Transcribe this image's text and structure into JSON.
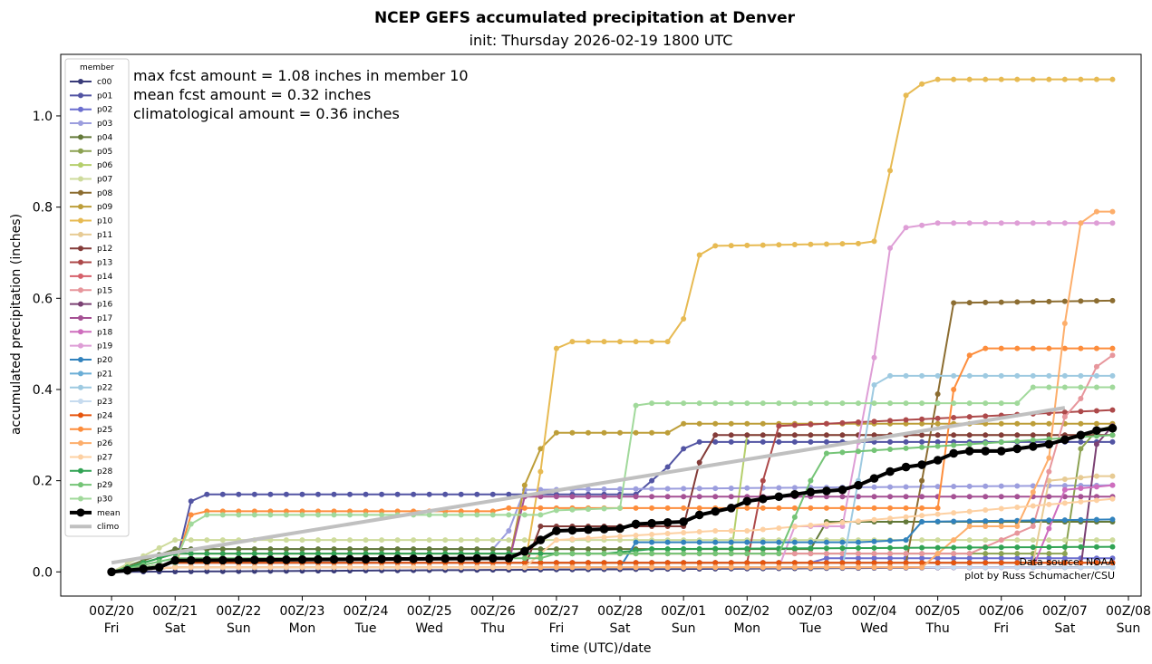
{
  "chart_data": {
    "type": "line",
    "title": "NCEP GEFS accumulated precipitation at Denver",
    "subtitle": "init: Thursday 2026-02-19 1800 UTC",
    "xlabel": "time (UTC)/date",
    "ylabel": "accumulated precipitation (inches)",
    "xlim": [
      -0.8,
      16.2
    ],
    "ylim": [
      -0.053,
      1.135
    ],
    "x_unit": "days since 00Z/20",
    "x_ticks": [
      {
        "value": 0,
        "line1": "00Z/20",
        "line2": "Fri"
      },
      {
        "value": 1,
        "line1": "00Z/21",
        "line2": "Sat"
      },
      {
        "value": 2,
        "line1": "00Z/22",
        "line2": "Sun"
      },
      {
        "value": 3,
        "line1": "00Z/23",
        "line2": "Mon"
      },
      {
        "value": 4,
        "line1": "00Z/24",
        "line2": "Tue"
      },
      {
        "value": 5,
        "line1": "00Z/25",
        "line2": "Wed"
      },
      {
        "value": 6,
        "line1": "00Z/26",
        "line2": "Thu"
      },
      {
        "value": 7,
        "line1": "00Z/27",
        "line2": "Fri"
      },
      {
        "value": 8,
        "line1": "00Z/28",
        "line2": "Sat"
      },
      {
        "value": 9,
        "line1": "00Z/01",
        "line2": "Sun"
      },
      {
        "value": 10,
        "line1": "00Z/02",
        "line2": "Mon"
      },
      {
        "value": 11,
        "line1": "00Z/03",
        "line2": "Tue"
      },
      {
        "value": 12,
        "line1": "00Z/04",
        "line2": "Wed"
      },
      {
        "value": 13,
        "line1": "00Z/05",
        "line2": "Thu"
      },
      {
        "value": 14,
        "line1": "00Z/06",
        "line2": "Fri"
      },
      {
        "value": 15,
        "line1": "00Z/07",
        "line2": "Sat"
      },
      {
        "value": 16,
        "line1": "00Z/08",
        "line2": "Sun"
      }
    ],
    "y_ticks": [
      0.0,
      0.2,
      0.4,
      0.6,
      0.8,
      1.0
    ],
    "y_tick_labels": [
      "0.0",
      "0.2",
      "0.4",
      "0.6",
      "0.8",
      "1.0"
    ],
    "annotations": [
      "max fcst amount = 1.08 inches in member 10",
      "mean fcst amount = 0.32 inches",
      "climatological amount = 0.36 inches"
    ],
    "source_lines": [
      "Data source: NOAA",
      "plot by Russ Schumacher/CSU"
    ],
    "legend_title": "member",
    "legend_position": "upper-left",
    "series": [
      {
        "name": "c00",
        "color": "#393b79",
        "knots": [
          [
            0,
            0
          ],
          [
            14,
            0.01
          ],
          [
            15.75,
            0.01
          ]
        ]
      },
      {
        "name": "p01",
        "color": "#5254a3",
        "knots": [
          [
            0,
            0
          ],
          [
            1,
            0.01
          ],
          [
            1.25,
            0.155
          ],
          [
            1.5,
            0.17
          ],
          [
            8.25,
            0.17
          ],
          [
            8.5,
            0.2
          ],
          [
            8.75,
            0.23
          ],
          [
            9,
            0.27
          ],
          [
            9.25,
            0.285
          ],
          [
            15.75,
            0.285
          ]
        ]
      },
      {
        "name": "p02",
        "color": "#6b6ecf",
        "knots": [
          [
            0,
            0
          ],
          [
            1,
            0.02
          ],
          [
            11,
            0.02
          ],
          [
            11.25,
            0.03
          ],
          [
            15.75,
            0.03
          ]
        ]
      },
      {
        "name": "p03",
        "color": "#9c9ede",
        "knots": [
          [
            0,
            0
          ],
          [
            1,
            0.05
          ],
          [
            6,
            0.05
          ],
          [
            6.25,
            0.09
          ],
          [
            6.5,
            0.18
          ],
          [
            15.75,
            0.19
          ]
        ]
      },
      {
        "name": "p04",
        "color": "#637939",
        "knots": [
          [
            0,
            0
          ],
          [
            1,
            0.05
          ],
          [
            11,
            0.05
          ],
          [
            11.25,
            0.11
          ],
          [
            15.75,
            0.11
          ]
        ]
      },
      {
        "name": "p05",
        "color": "#8ca252",
        "knots": [
          [
            0,
            0
          ],
          [
            1,
            0.04
          ],
          [
            15,
            0.04
          ],
          [
            15.25,
            0.27
          ],
          [
            15.5,
            0.31
          ],
          [
            15.75,
            0.32
          ]
        ]
      },
      {
        "name": "p06",
        "color": "#b5cf6b",
        "knots": [
          [
            0,
            0
          ],
          [
            1,
            0.04
          ],
          [
            9.75,
            0.04
          ],
          [
            10,
            0.3
          ],
          [
            15.75,
            0.3
          ]
        ]
      },
      {
        "name": "p07",
        "color": "#cedb9c",
        "knots": [
          [
            0,
            0
          ],
          [
            1,
            0.07
          ],
          [
            15.75,
            0.07
          ]
        ]
      },
      {
        "name": "p08",
        "color": "#8c6d31",
        "knots": [
          [
            0,
            0
          ],
          [
            1,
            0.02
          ],
          [
            12.5,
            0.02
          ],
          [
            12.75,
            0.2
          ],
          [
            13,
            0.39
          ],
          [
            13.25,
            0.59
          ],
          [
            15.75,
            0.595
          ]
        ]
      },
      {
        "name": "p09",
        "color": "#bd9e39",
        "knots": [
          [
            0,
            0
          ],
          [
            1,
            0.02
          ],
          [
            6.25,
            0.02
          ],
          [
            6.5,
            0.19
          ],
          [
            6.75,
            0.27
          ],
          [
            7,
            0.305
          ],
          [
            8.75,
            0.305
          ],
          [
            9,
            0.325
          ],
          [
            15.75,
            0.325
          ]
        ]
      },
      {
        "name": "p10",
        "color": "#e7ba52",
        "knots": [
          [
            0,
            0
          ],
          [
            1,
            0.01
          ],
          [
            6.5,
            0.01
          ],
          [
            6.75,
            0.22
          ],
          [
            7,
            0.49
          ],
          [
            7.25,
            0.505
          ],
          [
            8.75,
            0.505
          ],
          [
            9,
            0.555
          ],
          [
            9.25,
            0.695
          ],
          [
            9.5,
            0.715
          ],
          [
            11.75,
            0.72
          ],
          [
            12,
            0.725
          ],
          [
            12.25,
            0.88
          ],
          [
            12.5,
            1.045
          ],
          [
            12.75,
            1.07
          ],
          [
            13,
            1.08
          ],
          [
            15.75,
            1.08
          ]
        ]
      },
      {
        "name": "p11",
        "color": "#e7cb94",
        "knots": [
          [
            0,
            0
          ],
          [
            1,
            0.02
          ],
          [
            14.5,
            0.02
          ],
          [
            14.75,
            0.2
          ],
          [
            15.5,
            0.21
          ],
          [
            15.75,
            0.21
          ]
        ]
      },
      {
        "name": "p12",
        "color": "#843c39",
        "knots": [
          [
            0,
            0
          ],
          [
            1,
            0.01
          ],
          [
            6.5,
            0.01
          ],
          [
            6.75,
            0.1
          ],
          [
            9,
            0.1
          ],
          [
            9.25,
            0.24
          ],
          [
            9.5,
            0.3
          ],
          [
            15.75,
            0.3
          ]
        ]
      },
      {
        "name": "p13",
        "color": "#ad494a",
        "knots": [
          [
            0,
            0
          ],
          [
            1,
            0.02
          ],
          [
            10,
            0.02
          ],
          [
            10.25,
            0.2
          ],
          [
            10.5,
            0.32
          ],
          [
            15.75,
            0.355
          ]
        ]
      },
      {
        "name": "p14",
        "color": "#d6616b",
        "knots": [
          [
            0,
            0
          ],
          [
            1,
            0.02
          ],
          [
            15.75,
            0.02
          ]
        ]
      },
      {
        "name": "p15",
        "color": "#e7969c",
        "knots": [
          [
            0,
            0
          ],
          [
            1,
            0.04
          ],
          [
            13.5,
            0.04
          ],
          [
            14.5,
            0.1
          ],
          [
            15,
            0.34
          ],
          [
            15.25,
            0.38
          ],
          [
            15.5,
            0.45
          ],
          [
            15.75,
            0.475
          ]
        ]
      },
      {
        "name": "p16",
        "color": "#7b4173",
        "knots": [
          [
            0,
            0
          ],
          [
            1,
            0.01
          ],
          [
            15.25,
            0.01
          ],
          [
            15.5,
            0.28
          ],
          [
            15.75,
            0.32
          ]
        ]
      },
      {
        "name": "p17",
        "color": "#a55194",
        "knots": [
          [
            0,
            0
          ],
          [
            1,
            0.02
          ],
          [
            6.25,
            0.02
          ],
          [
            6.5,
            0.165
          ],
          [
            15.75,
            0.165
          ]
        ]
      },
      {
        "name": "p18",
        "color": "#ce6dbd",
        "knots": [
          [
            0,
            0
          ],
          [
            1,
            0.01
          ],
          [
            14.5,
            0.01
          ],
          [
            15,
            0.18
          ],
          [
            15.75,
            0.19
          ]
        ]
      },
      {
        "name": "p19",
        "color": "#de9ed6",
        "knots": [
          [
            0,
            0
          ],
          [
            1,
            0.01
          ],
          [
            10.5,
            0.01
          ],
          [
            10.75,
            0.1
          ],
          [
            11.5,
            0.1
          ],
          [
            12,
            0.47
          ],
          [
            12.25,
            0.71
          ],
          [
            12.5,
            0.755
          ],
          [
            13,
            0.765
          ],
          [
            15.75,
            0.765
          ]
        ]
      },
      {
        "name": "p20",
        "color": "#3182bd",
        "knots": [
          [
            0,
            0
          ],
          [
            1,
            0.01
          ],
          [
            8,
            0.01
          ],
          [
            8.25,
            0.065
          ],
          [
            11.75,
            0.065
          ],
          [
            12.5,
            0.07
          ],
          [
            12.75,
            0.11
          ],
          [
            15.75,
            0.115
          ]
        ]
      },
      {
        "name": "p21",
        "color": "#6baed6",
        "knots": [
          [
            0,
            0
          ],
          [
            1,
            0.02
          ],
          [
            15.75,
            0.02
          ]
        ]
      },
      {
        "name": "p22",
        "color": "#9ecae1",
        "knots": [
          [
            0,
            0
          ],
          [
            1,
            0.01
          ],
          [
            11.5,
            0.01
          ],
          [
            11.75,
            0.2
          ],
          [
            12,
            0.41
          ],
          [
            12.25,
            0.43
          ],
          [
            15.75,
            0.43
          ]
        ]
      },
      {
        "name": "p23",
        "color": "#c6dbef",
        "knots": [
          [
            0,
            0
          ],
          [
            1,
            0.01
          ],
          [
            15.75,
            0.01
          ]
        ]
      },
      {
        "name": "p24",
        "color": "#e6550d",
        "knots": [
          [
            0,
            0
          ],
          [
            1,
            0.02
          ],
          [
            15.75,
            0.02
          ]
        ]
      },
      {
        "name": "p25",
        "color": "#fd8d3c",
        "knots": [
          [
            0,
            0
          ],
          [
            1,
            0.01
          ],
          [
            1.25,
            0.125
          ],
          [
            1.5,
            0.133
          ],
          [
            6,
            0.133
          ],
          [
            6.25,
            0.14
          ],
          [
            13,
            0.14
          ],
          [
            13.25,
            0.4
          ],
          [
            13.5,
            0.475
          ],
          [
            13.75,
            0.49
          ],
          [
            15.75,
            0.49
          ]
        ]
      },
      {
        "name": "p26",
        "color": "#fdae6b",
        "knots": [
          [
            0,
            0
          ],
          [
            1,
            0.01
          ],
          [
            12.75,
            0.01
          ],
          [
            13.25,
            0.07
          ],
          [
            13.5,
            0.1
          ],
          [
            14.25,
            0.1
          ],
          [
            14.75,
            0.25
          ],
          [
            15,
            0.545
          ],
          [
            15.25,
            0.765
          ],
          [
            15.5,
            0.79
          ],
          [
            15.75,
            0.79
          ]
        ]
      },
      {
        "name": "p27",
        "color": "#fdd0a2",
        "knots": [
          [
            0,
            0
          ],
          [
            1,
            0.01
          ],
          [
            6.5,
            0.01
          ],
          [
            7,
            0.07
          ],
          [
            9.5,
            0.09
          ],
          [
            10,
            0.09
          ],
          [
            15.75,
            0.16
          ]
        ]
      },
      {
        "name": "p28",
        "color": "#31a354",
        "knots": [
          [
            0,
            0
          ],
          [
            1,
            0.04
          ],
          [
            7.75,
            0.04
          ],
          [
            8.5,
            0.05
          ],
          [
            15.75,
            0.055
          ]
        ]
      },
      {
        "name": "p29",
        "color": "#74c476",
        "knots": [
          [
            0,
            0
          ],
          [
            1,
            0.03
          ],
          [
            6.75,
            0.03
          ],
          [
            7,
            0.04
          ],
          [
            10.5,
            0.04
          ],
          [
            11,
            0.2
          ],
          [
            11.25,
            0.26
          ],
          [
            15.75,
            0.3
          ]
        ]
      },
      {
        "name": "p30",
        "color": "#a1d99b",
        "knots": [
          [
            0,
            0
          ],
          [
            1,
            0.02
          ],
          [
            1.25,
            0.105
          ],
          [
            1.5,
            0.125
          ],
          [
            6.75,
            0.125
          ],
          [
            7,
            0.135
          ],
          [
            8,
            0.14
          ],
          [
            8.25,
            0.365
          ],
          [
            8.5,
            0.37
          ],
          [
            14.25,
            0.37
          ],
          [
            14.5,
            0.405
          ],
          [
            15.75,
            0.405
          ]
        ]
      },
      {
        "name": "mean",
        "color": "#000000",
        "knots": [
          [
            0,
            0
          ],
          [
            0.75,
            0.01
          ],
          [
            1,
            0.025
          ],
          [
            6.25,
            0.03
          ],
          [
            6.5,
            0.045
          ],
          [
            6.75,
            0.07
          ],
          [
            7,
            0.09
          ],
          [
            8,
            0.095
          ],
          [
            8.25,
            0.105
          ],
          [
            9,
            0.11
          ],
          [
            9.25,
            0.125
          ],
          [
            9.75,
            0.14
          ],
          [
            10,
            0.155
          ],
          [
            10.5,
            0.165
          ],
          [
            11,
            0.175
          ],
          [
            11.5,
            0.18
          ],
          [
            11.75,
            0.19
          ],
          [
            12,
            0.205
          ],
          [
            12.25,
            0.22
          ],
          [
            12.5,
            0.23
          ],
          [
            12.75,
            0.235
          ],
          [
            13,
            0.245
          ],
          [
            13.25,
            0.26
          ],
          [
            13.5,
            0.265
          ],
          [
            14,
            0.265
          ],
          [
            14.5,
            0.275
          ],
          [
            14.75,
            0.28
          ],
          [
            15,
            0.29
          ],
          [
            15.25,
            0.3
          ],
          [
            15.5,
            0.31
          ],
          [
            15.75,
            0.315
          ]
        ]
      },
      {
        "name": "climo",
        "color": "#c0c0c0",
        "knots": [
          [
            0,
            0.02
          ],
          [
            15,
            0.36
          ]
        ]
      }
    ]
  }
}
